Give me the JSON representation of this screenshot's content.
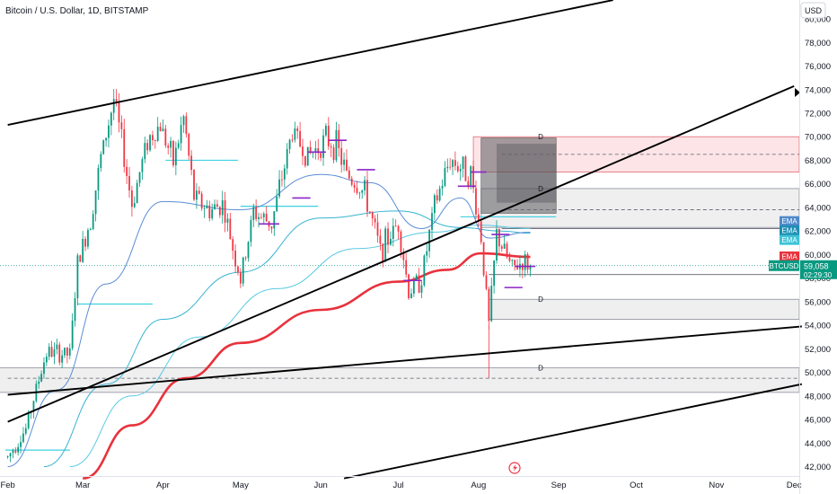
{
  "header": {
    "title": "Bitcoin / U.S. Dollar, 1D, BITSTAMP",
    "currency_button": "USD"
  },
  "colors": {
    "up": "#089981",
    "down": "#f23645",
    "ema200": "#e8323c",
    "ema_fast": "#5b8dd6",
    "ema_mid": "#37b4d0",
    "ema_slow": "#59c9e3",
    "trend": "#000000",
    "hline": "#3fd1e0",
    "purple": "#8a24c8",
    "price_tag": "#089981"
  },
  "price_axis": {
    "ticks": [
      "80,000",
      "78,000",
      "76,000",
      "74,000",
      "72,000",
      "70,000",
      "68,000",
      "66,000",
      "64,000",
      "62,000",
      "60,000",
      "58,000",
      "56,000",
      "54,000",
      "52,000",
      "50,000",
      "48,000",
      "46,000",
      "44,000",
      "42,000"
    ]
  },
  "time_axis": {
    "labels": [
      "Feb",
      "Mar",
      "Apr",
      "May",
      "Jun",
      "Jul",
      "Aug",
      "Sep",
      "Oct",
      "Nov",
      "Dec"
    ]
  },
  "badges": {
    "ema_labels": [
      "EMA",
      "EMA",
      "EMA"
    ],
    "ema_red_label": "EMA",
    "symbol": "BTCUSD",
    "last_price": "59,058",
    "countdown": "02:29:30"
  },
  "zone_label": "D",
  "chart_data": {
    "type": "candlestick",
    "title": "Bitcoin / U.S. Dollar, 1D, BITSTAMP",
    "symbol": "BTCUSD",
    "timeframe": "1D",
    "exchange": "BITSTAMP",
    "currency": "USD",
    "ylim": [
      41000,
      81500
    ],
    "xlim": [
      "2024-02-01",
      "2024-12-04"
    ],
    "last_price": 59058,
    "close_path": [
      [
        "2024-02-01",
        42800
      ],
      [
        "2024-02-08",
        45200
      ],
      [
        "2024-02-12",
        48600
      ],
      [
        "2024-02-16",
        51700
      ],
      [
        "2024-02-25",
        51500
      ],
      [
        "2024-02-28",
        59200
      ],
      [
        "2024-03-04",
        63000
      ],
      [
        "2024-03-08",
        68200
      ],
      [
        "2024-03-13",
        73200
      ],
      [
        "2024-03-16",
        69600
      ],
      [
        "2024-03-20",
        64200
      ],
      [
        "2024-03-26",
        69700
      ],
      [
        "2024-03-31",
        71000
      ],
      [
        "2024-04-05",
        67800
      ],
      [
        "2024-04-09",
        71600
      ],
      [
        "2024-04-13",
        64900
      ],
      [
        "2024-04-19",
        63700
      ],
      [
        "2024-04-24",
        64300
      ],
      [
        "2024-05-01",
        57800
      ],
      [
        "2024-05-06",
        63600
      ],
      [
        "2024-05-13",
        62600
      ],
      [
        "2024-05-21",
        70500
      ],
      [
        "2024-05-27",
        68300
      ],
      [
        "2024-06-03",
        69800
      ],
      [
        "2024-06-07",
        69300
      ],
      [
        "2024-06-11",
        66800
      ],
      [
        "2024-06-18",
        65200
      ],
      [
        "2024-06-24",
        60300
      ],
      [
        "2024-07-01",
        62700
      ],
      [
        "2024-07-05",
        56800
      ],
      [
        "2024-07-10",
        58000
      ],
      [
        "2024-07-15",
        64100
      ],
      [
        "2024-07-21",
        68100
      ],
      [
        "2024-07-29",
        66800
      ],
      [
        "2024-08-02",
        61400
      ],
      [
        "2024-08-05",
        54000
      ],
      [
        "2024-08-08",
        61700
      ],
      [
        "2024-08-14",
        58700
      ],
      [
        "2024-08-18",
        59400
      ],
      [
        "2024-08-21",
        59058
      ]
    ],
    "ema200": [
      [
        "2024-03-01",
        41000
      ],
      [
        "2024-03-20",
        45500
      ],
      [
        "2024-04-10",
        49500
      ],
      [
        "2024-05-01",
        52500
      ],
      [
        "2024-06-01",
        55300
      ],
      [
        "2024-07-01",
        57700
      ],
      [
        "2024-07-20",
        58700
      ],
      [
        "2024-08-02",
        60100
      ],
      [
        "2024-08-21",
        59800
      ]
    ],
    "ema_fast": [
      [
        "2024-02-01",
        42000
      ],
      [
        "2024-02-20",
        48500
      ],
      [
        "2024-03-10",
        57500
      ],
      [
        "2024-04-01",
        64500
      ],
      [
        "2024-05-01",
        63800
      ],
      [
        "2024-06-01",
        66800
      ],
      [
        "2024-06-20",
        66100
      ],
      [
        "2024-07-10",
        62200
      ],
      [
        "2024-07-25",
        64800
      ],
      [
        "2024-08-05",
        61400
      ],
      [
        "2024-08-21",
        61900
      ]
    ],
    "ema_mid": [
      [
        "2024-02-15",
        42000
      ],
      [
        "2024-03-10",
        49000
      ],
      [
        "2024-04-01",
        54500
      ],
      [
        "2024-05-01",
        58500
      ],
      [
        "2024-06-01",
        63100
      ],
      [
        "2024-07-01",
        63700
      ],
      [
        "2024-07-25",
        62300
      ],
      [
        "2024-08-10",
        62000
      ],
      [
        "2024-08-21",
        61800
      ]
    ],
    "ema_slow": [
      [
        "2024-02-25",
        42000
      ],
      [
        "2024-03-20",
        48000
      ],
      [
        "2024-04-15",
        53000
      ],
      [
        "2024-05-15",
        57100
      ],
      [
        "2024-06-15",
        60500
      ],
      [
        "2024-07-15",
        61900
      ],
      [
        "2024-08-01",
        62500
      ],
      [
        "2024-08-21",
        62200
      ]
    ],
    "trendlines": [
      {
        "from": [
          "2024-02-01",
          71000
        ],
        "to": [
          "2024-09-22",
          81600
        ]
      },
      {
        "from": [
          "2024-02-01",
          45800
        ],
        "to": [
          "2024-12-01",
          74300
        ]
      },
      {
        "from": [
          "2024-02-01",
          48100
        ],
        "to": [
          "2024-12-04",
          53900
        ]
      },
      {
        "from": [
          "2024-06-10",
          41000
        ],
        "to": [
          "2024-12-04",
          49000
        ]
      }
    ],
    "zones": [
      {
        "label": "D",
        "kind": "supply",
        "from": "2024-07-30",
        "y": [
          67000,
          70000
        ]
      },
      {
        "label": "D",
        "kind": "neutral",
        "from": "2024-08-02",
        "y": [
          62300,
          65600
        ]
      },
      {
        "label": "D",
        "kind": "neutral",
        "from": "2024-08-05",
        "y": [
          54500,
          56200
        ]
      },
      {
        "label": "D",
        "kind": "neutral",
        "from": "2024-01-25",
        "y": [
          48300,
          50400
        ]
      }
    ],
    "projection_box": {
      "from": "2024-08-02",
      "to": "2024-08-31",
      "y": [
        63500,
        69900
      ]
    },
    "key_levels": [
      {
        "price": 58300,
        "from": "2024-08-05"
      },
      {
        "price": 62200,
        "from": "2024-08-10"
      },
      {
        "price": 63800,
        "from": "2024-08-10",
        "dashed": true
      },
      {
        "price": 68500,
        "from": "2024-08-10",
        "dashed": true
      },
      {
        "price": 49500,
        "from": "2024-02-01",
        "dashed": true
      }
    ],
    "cyan_levels": [
      {
        "price": 43400,
        "from": "2024-01-31",
        "to": "2024-02-25"
      },
      {
        "price": 55800,
        "from": "2024-02-28",
        "to": "2024-03-28"
      },
      {
        "price": 68000,
        "from": "2024-04-02",
        "to": "2024-04-30"
      },
      {
        "price": 64100,
        "from": "2024-05-01",
        "to": "2024-05-31"
      },
      {
        "price": 63200,
        "from": "2024-07-25",
        "to": "2024-08-31"
      }
    ],
    "purple_levels": [
      {
        "price": 69700,
        "from": "2024-06-04",
        "to": "2024-06-11"
      },
      {
        "price": 68700,
        "from": "2024-05-27",
        "to": "2024-06-03"
      },
      {
        "price": 67200,
        "from": "2024-06-15",
        "to": "2024-06-22"
      },
      {
        "price": 64800,
        "from": "2024-05-21",
        "to": "2024-05-28"
      },
      {
        "price": 62600,
        "from": "2024-05-08",
        "to": "2024-05-16"
      },
      {
        "price": 57800,
        "from": "2024-07-03",
        "to": "2024-07-10"
      },
      {
        "price": 65800,
        "from": "2024-07-24",
        "to": "2024-07-31"
      },
      {
        "price": 67000,
        "from": "2024-07-29",
        "to": "2024-08-04"
      },
      {
        "price": 61700,
        "from": "2024-08-06",
        "to": "2024-08-13"
      },
      {
        "price": 59000,
        "from": "2024-08-15",
        "to": "2024-08-23"
      },
      {
        "price": 57200,
        "from": "2024-08-11",
        "to": "2024-08-18"
      }
    ]
  }
}
